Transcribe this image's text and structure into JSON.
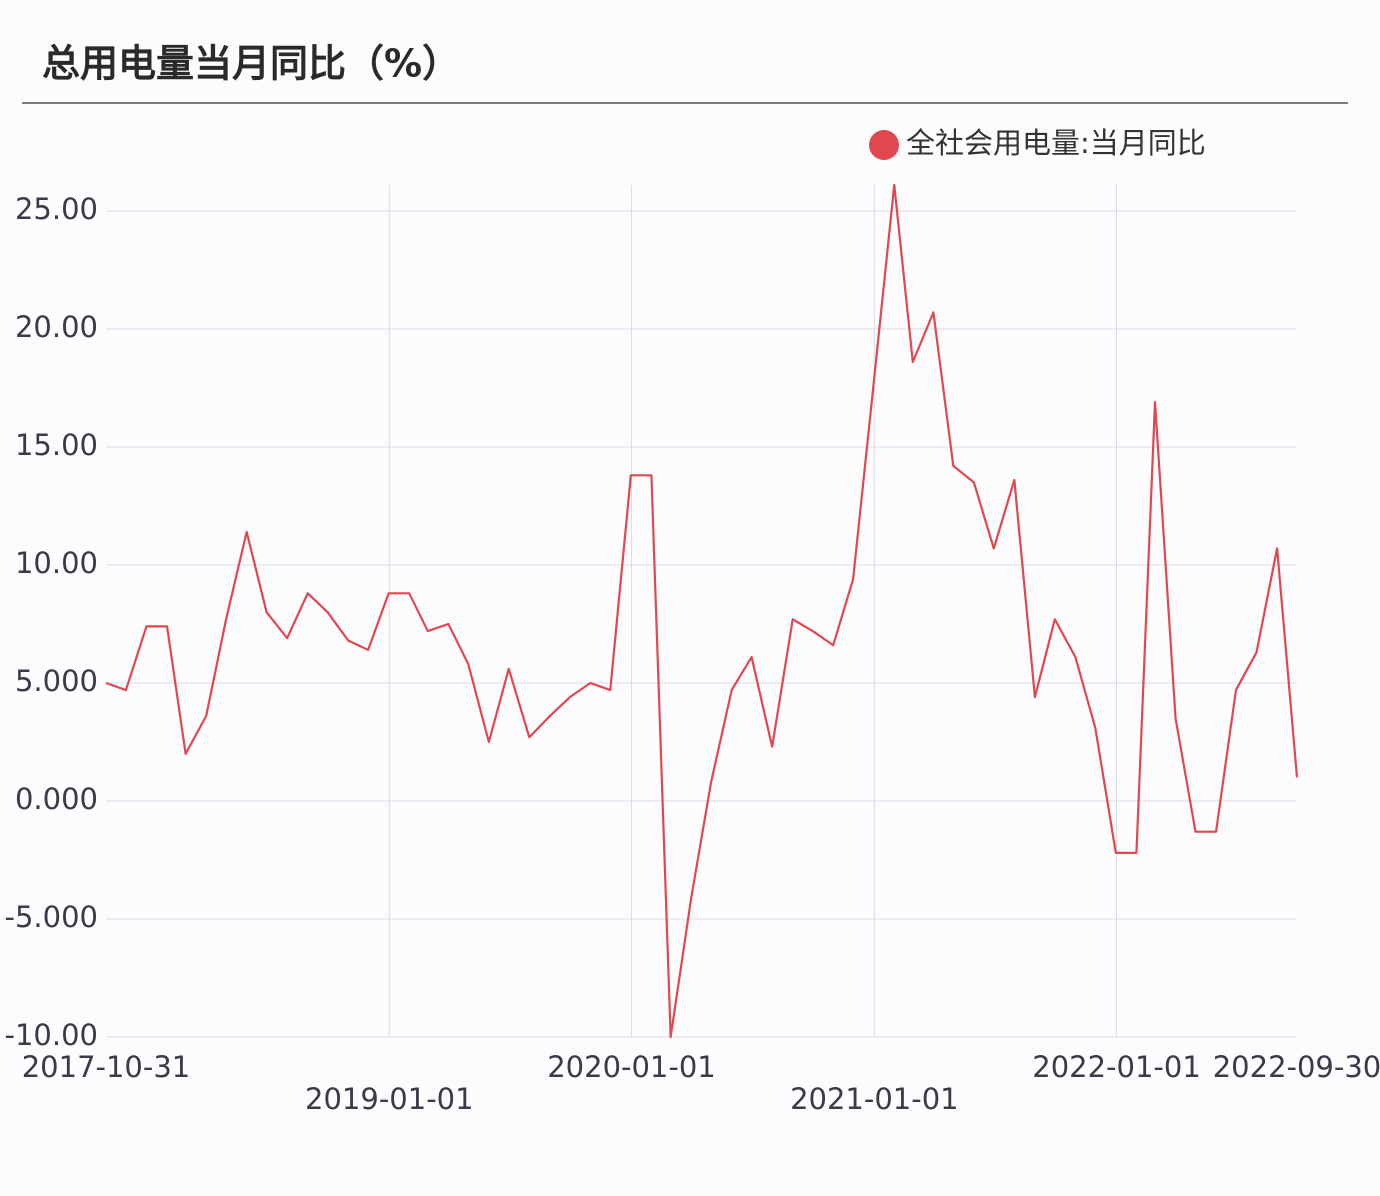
{
  "chart_data": {
    "type": "line",
    "title": "总用电量当月同比（%）",
    "x": [
      "2017-10-31",
      "2017-11-30",
      "2017-12-31",
      "2018-01-31",
      "2018-02-28",
      "2018-03-31",
      "2018-04-30",
      "2018-05-31",
      "2018-06-30",
      "2018-07-31",
      "2018-08-31",
      "2018-09-30",
      "2018-10-31",
      "2018-11-30",
      "2018-12-31",
      "2019-01-31",
      "2019-02-28",
      "2019-03-31",
      "2019-04-30",
      "2019-05-31",
      "2019-06-30",
      "2019-07-31",
      "2019-08-31",
      "2019-09-30",
      "2019-10-31",
      "2019-11-30",
      "2019-12-31",
      "2020-01-31",
      "2020-02-29",
      "2020-03-31",
      "2020-04-30",
      "2020-05-31",
      "2020-06-30",
      "2020-07-31",
      "2020-08-31",
      "2020-09-30",
      "2020-10-31",
      "2020-11-30",
      "2020-12-31",
      "2021-01-31",
      "2021-02-28",
      "2021-03-31",
      "2021-04-30",
      "2021-05-31",
      "2021-06-30",
      "2021-07-31",
      "2021-08-31",
      "2021-09-30",
      "2021-10-31",
      "2021-11-30",
      "2021-12-31",
      "2022-01-31",
      "2022-02-28",
      "2022-03-31",
      "2022-04-30",
      "2022-05-31",
      "2022-06-30",
      "2022-07-31",
      "2022-08-31",
      "2022-09-30"
    ],
    "series": [
      {
        "name": "全社会用电量:当月同比",
        "color": "#e0474f",
        "values": [
          5.0,
          4.7,
          7.4,
          7.4,
          2.0,
          3.6,
          7.7,
          11.4,
          8.0,
          6.9,
          8.8,
          8.0,
          6.8,
          6.4,
          8.8,
          8.8,
          7.2,
          7.5,
          5.8,
          2.5,
          5.6,
          2.7,
          3.6,
          4.4,
          5.0,
          4.7,
          13.8,
          13.8,
          -10.0,
          -4.1,
          0.8,
          4.7,
          6.1,
          2.3,
          7.7,
          7.2,
          6.6,
          9.4,
          17.7,
          26.1,
          18.6,
          20.7,
          14.2,
          13.5,
          10.7,
          13.6,
          4.4,
          7.7,
          6.1,
          3.1,
          -2.2,
          -2.2,
          16.9,
          3.5,
          -1.3,
          -1.3,
          4.7,
          6.3,
          10.7,
          1.0
        ]
      }
    ],
    "xlim": [
      "2017-10-31",
      "2022-09-30"
    ],
    "xticks": [
      "2017-10-31",
      "2019-01-01",
      "2020-01-01",
      "2021-01-01",
      "2022-01-01",
      "2022-09-30"
    ],
    "ylim": [
      -10,
      26.1
    ],
    "yticks": [
      {
        "value": 25,
        "label": "25.00"
      },
      {
        "value": 20,
        "label": "20.00"
      },
      {
        "value": 15,
        "label": "15.00"
      },
      {
        "value": 10,
        "label": "10.00"
      },
      {
        "value": 5,
        "label": "5.000"
      },
      {
        "value": 0,
        "label": "0.000"
      },
      {
        "value": -5,
        "label": "-5.000"
      },
      {
        "value": -10,
        "label": "-10.00"
      }
    ],
    "grid": true,
    "legend": "top-right"
  }
}
